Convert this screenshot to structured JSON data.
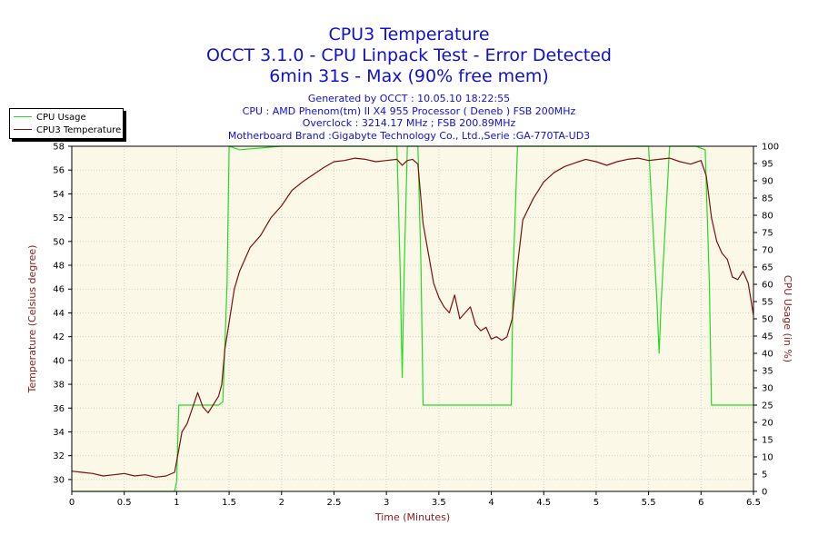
{
  "header": {
    "title": "CPU3 Temperature",
    "subtitle1": "OCCT 3.1.0 - CPU Linpack Test - Error Detected",
    "subtitle2": "6min 31s - Max (90% free mem)"
  },
  "info": {
    "generated": "Generated by OCCT : 10.05.10 18:22:55",
    "cpu": "CPU : AMD Phenom(tm) II X4 955 Processor ( Deneb ) FSB 200MHz",
    "overclock": "Overclock : 3214.17 MHz ; FSB 200.89MHz",
    "motherboard": "Motherboard Brand :Gigabyte Technology Co., Ltd.,Serie :GA-770TA-UD3"
  },
  "colors": {
    "plot_bg": "#fcf8e8",
    "usage": "#22dd22",
    "temp": "#7a1010",
    "grid": "#cfcfcf",
    "axis_label": "#8b1a1a"
  },
  "chart_data": {
    "type": "line",
    "xlabel": "Time (Minutes)",
    "ylabel": "Temperature (Celsius degree)",
    "y2label": "CPU Usage (in %)",
    "xlim": [
      0,
      6.5
    ],
    "ylim": [
      29,
      58
    ],
    "y2lim": [
      0,
      100
    ],
    "x_ticks": [
      0,
      0.5,
      1,
      1.5,
      2,
      2.5,
      3,
      3.5,
      4,
      4.5,
      5,
      5.5,
      6,
      6.5
    ],
    "y_ticks": [
      30,
      32,
      34,
      36,
      38,
      40,
      42,
      44,
      46,
      48,
      50,
      52,
      54,
      56,
      58
    ],
    "y2_ticks": [
      0,
      5,
      10,
      15,
      20,
      25,
      30,
      35,
      40,
      45,
      50,
      55,
      60,
      65,
      70,
      75,
      80,
      85,
      90,
      95,
      100
    ],
    "grid": true,
    "legend": "top-left",
    "series": [
      {
        "name": "CPU Usage",
        "axis": "right",
        "x": [
          0,
          0.98,
          1.0,
          1.02,
          1.2,
          1.4,
          1.44,
          1.48,
          1.5,
          1.6,
          2.0,
          2.5,
          3.0,
          3.1,
          3.13,
          3.15,
          3.17,
          3.2,
          3.3,
          3.33,
          3.35,
          3.4,
          3.6,
          4.0,
          4.19,
          4.21,
          4.25,
          4.5,
          5.0,
          5.5,
          5.58,
          5.6,
          5.62,
          5.7,
          5.95,
          6.04,
          6.08,
          6.1,
          6.5
        ],
        "values": [
          0,
          0,
          3,
          25,
          25,
          25,
          26,
          60,
          100,
          99,
          100,
          100,
          100,
          100,
          65,
          33,
          65,
          100,
          100,
          65,
          25,
          25,
          25,
          25,
          25,
          65,
          100,
          100,
          100,
          100,
          55,
          40,
          55,
          100,
          100,
          99,
          60,
          25,
          25
        ]
      },
      {
        "name": "CPU3 Temperature",
        "axis": "left",
        "x": [
          0,
          0.1,
          0.2,
          0.3,
          0.4,
          0.5,
          0.6,
          0.7,
          0.8,
          0.9,
          0.98,
          1.02,
          1.05,
          1.1,
          1.15,
          1.2,
          1.25,
          1.3,
          1.35,
          1.4,
          1.43,
          1.46,
          1.5,
          1.55,
          1.6,
          1.7,
          1.8,
          1.9,
          2.0,
          2.1,
          2.2,
          2.3,
          2.4,
          2.5,
          2.6,
          2.7,
          2.8,
          2.9,
          3.0,
          3.1,
          3.15,
          3.2,
          3.25,
          3.3,
          3.35,
          3.4,
          3.45,
          3.5,
          3.55,
          3.6,
          3.65,
          3.7,
          3.75,
          3.8,
          3.85,
          3.9,
          3.95,
          4.0,
          4.05,
          4.1,
          4.15,
          4.2,
          4.25,
          4.3,
          4.4,
          4.5,
          4.6,
          4.7,
          4.8,
          4.9,
          5.0,
          5.1,
          5.2,
          5.3,
          5.4,
          5.5,
          5.6,
          5.7,
          5.8,
          5.9,
          6.0,
          6.05,
          6.1,
          6.15,
          6.2,
          6.25,
          6.3,
          6.35,
          6.4,
          6.45,
          6.5
        ],
        "values": [
          30.7,
          30.6,
          30.5,
          30.3,
          30.4,
          30.5,
          30.3,
          30.4,
          30.2,
          30.3,
          30.6,
          32.5,
          34.0,
          34.7,
          36.0,
          37.3,
          36.1,
          35.6,
          36.3,
          37.0,
          38.0,
          41.0,
          43.2,
          46.0,
          47.5,
          49.5,
          50.5,
          52.0,
          53.0,
          54.3,
          55.0,
          55.6,
          56.2,
          56.7,
          56.8,
          57.0,
          56.9,
          56.7,
          56.8,
          56.9,
          56.4,
          56.8,
          56.9,
          56.5,
          51.5,
          49.0,
          46.5,
          45.3,
          44.5,
          44.0,
          45.5,
          43.5,
          44.0,
          44.5,
          43.0,
          42.5,
          42.8,
          41.8,
          42.0,
          41.7,
          42.0,
          43.5,
          48.0,
          51.8,
          53.6,
          55.0,
          55.8,
          56.3,
          56.6,
          56.9,
          56.7,
          56.4,
          56.7,
          56.9,
          57.0,
          56.8,
          56.9,
          57.0,
          56.7,
          56.5,
          56.8,
          55.5,
          52.0,
          50.0,
          49.0,
          48.5,
          47.0,
          46.8,
          47.5,
          46.5,
          43.8
        ]
      }
    ]
  }
}
